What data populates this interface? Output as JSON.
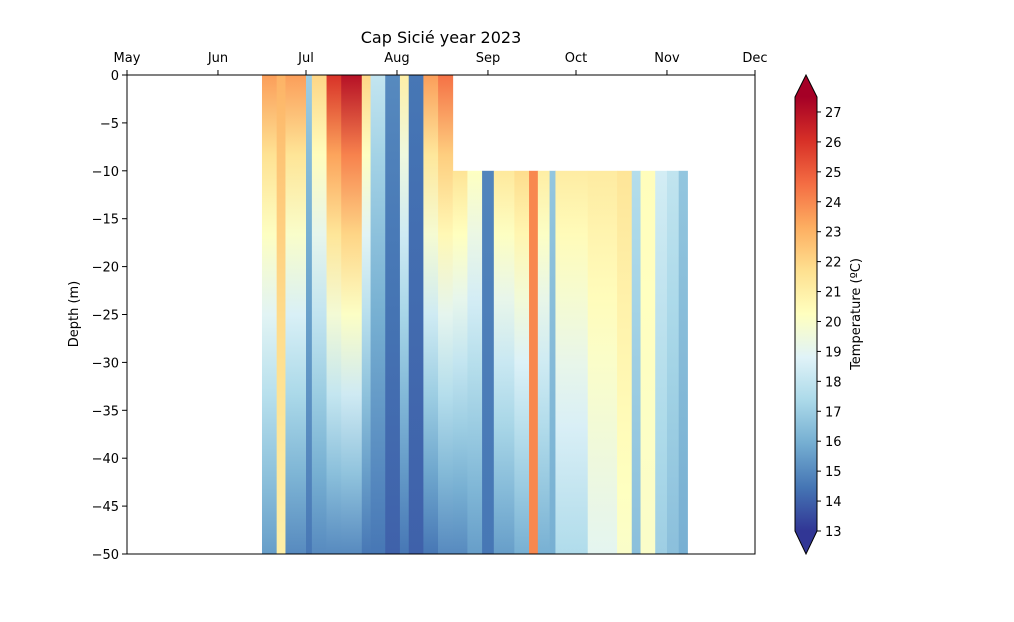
{
  "chart_data": {
    "type": "heatmap",
    "title": "Cap Sicié year 2023",
    "xlabel": "",
    "ylabel": "Depth (m)",
    "x_axis_position": "top",
    "x_ticks": [
      "May",
      "Jun",
      "Jul",
      "Aug",
      "Sep",
      "Oct",
      "Nov",
      "Dec"
    ],
    "x_tick_days": [
      0,
      31,
      61,
      92,
      123,
      153,
      184,
      214
    ],
    "xlim_days_from_may1": [
      0,
      214
    ],
    "ylim": [
      -50,
      0
    ],
    "y_ticks": [
      0,
      -5,
      -10,
      -15,
      -20,
      -25,
      -30,
      -35,
      -40,
      -45,
      -50
    ],
    "grid": false,
    "colorbar": {
      "label": "Temperature (ºC)",
      "min": 13,
      "max": 27.5,
      "ticks": [
        13,
        14,
        15,
        16,
        17,
        18,
        19,
        20,
        21,
        22,
        23,
        24,
        25,
        26,
        27
      ],
      "extend": "both",
      "colormap": "RdYlBu_r",
      "colors": [
        "#313695",
        "#4575b4",
        "#74add1",
        "#abd9e9",
        "#e0f3f8",
        "#ffffbf",
        "#fee090",
        "#fdae61",
        "#f46d43",
        "#d73027",
        "#a50026"
      ]
    },
    "coverage": [
      {
        "start_date": "2023-06-16",
        "end_date": "2023-08-20",
        "top_depth": 0,
        "bottom_depth": -50
      },
      {
        "start_date": "2023-08-20",
        "end_date": "2023-11-08",
        "top_depth": -10,
        "bottom_depth": -50
      }
    ],
    "profiles": [
      {
        "start_date": "2023-06-16",
        "surface": 23.5,
        "bottom": 15.5
      },
      {
        "start_date": "2023-06-21",
        "surface": 23.0,
        "bottom": 21.0
      },
      {
        "start_date": "2023-06-24",
        "surface": 23.5,
        "bottom": 15.0
      },
      {
        "start_date": "2023-07-01",
        "surface": 17.0,
        "bottom": 14.5
      },
      {
        "start_date": "2023-07-03",
        "surface": 22.0,
        "bottom": 15.0
      },
      {
        "start_date": "2023-07-08",
        "surface": 26.0,
        "bottom": 15.0
      },
      {
        "start_date": "2023-07-13",
        "surface": 27.0,
        "bottom": 15.0
      },
      {
        "start_date": "2023-07-20",
        "surface": 22.0,
        "bottom": 14.5
      },
      {
        "start_date": "2023-07-23",
        "surface": 18.0,
        "bottom": 14.5
      },
      {
        "start_date": "2023-07-28",
        "surface": 15.0,
        "bottom": 14.0
      },
      {
        "start_date": "2023-08-02",
        "surface": 21.0,
        "bottom": 14.5
      },
      {
        "start_date": "2023-08-05",
        "surface": 14.5,
        "bottom": 14.0
      },
      {
        "start_date": "2023-08-10",
        "surface": 23.5,
        "bottom": 14.5
      },
      {
        "start_date": "2023-08-15",
        "surface": 24.5,
        "bottom": 15.0
      },
      {
        "start_date": "2023-08-20",
        "surface": 24.0,
        "bottom": 15.0
      },
      {
        "start_date": "2023-08-25",
        "surface": 22.0,
        "bottom": 15.5
      },
      {
        "start_date": "2023-08-30",
        "surface": 15.0,
        "bottom": 14.5
      },
      {
        "start_date": "2023-09-03",
        "surface": 23.5,
        "bottom": 15.5
      },
      {
        "start_date": "2023-09-10",
        "surface": 24.0,
        "bottom": 16.0
      },
      {
        "start_date": "2023-09-15",
        "surface": 24.0,
        "bottom": 24.0
      },
      {
        "start_date": "2023-09-18",
        "surface": 23.0,
        "bottom": 16.0
      },
      {
        "start_date": "2023-09-22",
        "surface": 17.0,
        "bottom": 16.0
      },
      {
        "start_date": "2023-09-24",
        "surface": 22.5,
        "bottom": 17.5
      },
      {
        "start_date": "2023-10-05",
        "surface": 22.0,
        "bottom": 19.0
      },
      {
        "start_date": "2023-10-15",
        "surface": 22.0,
        "bottom": 20.0
      },
      {
        "start_date": "2023-10-20",
        "surface": 18.0,
        "bottom": 16.5
      },
      {
        "start_date": "2023-10-23",
        "surface": 20.5,
        "bottom": 20.0
      },
      {
        "start_date": "2023-10-28",
        "surface": 19.0,
        "bottom": 17.0
      },
      {
        "start_date": "2023-11-01",
        "surface": 18.5,
        "bottom": 16.5
      },
      {
        "start_date": "2023-11-05",
        "surface": 17.0,
        "bottom": 16.0
      }
    ]
  }
}
